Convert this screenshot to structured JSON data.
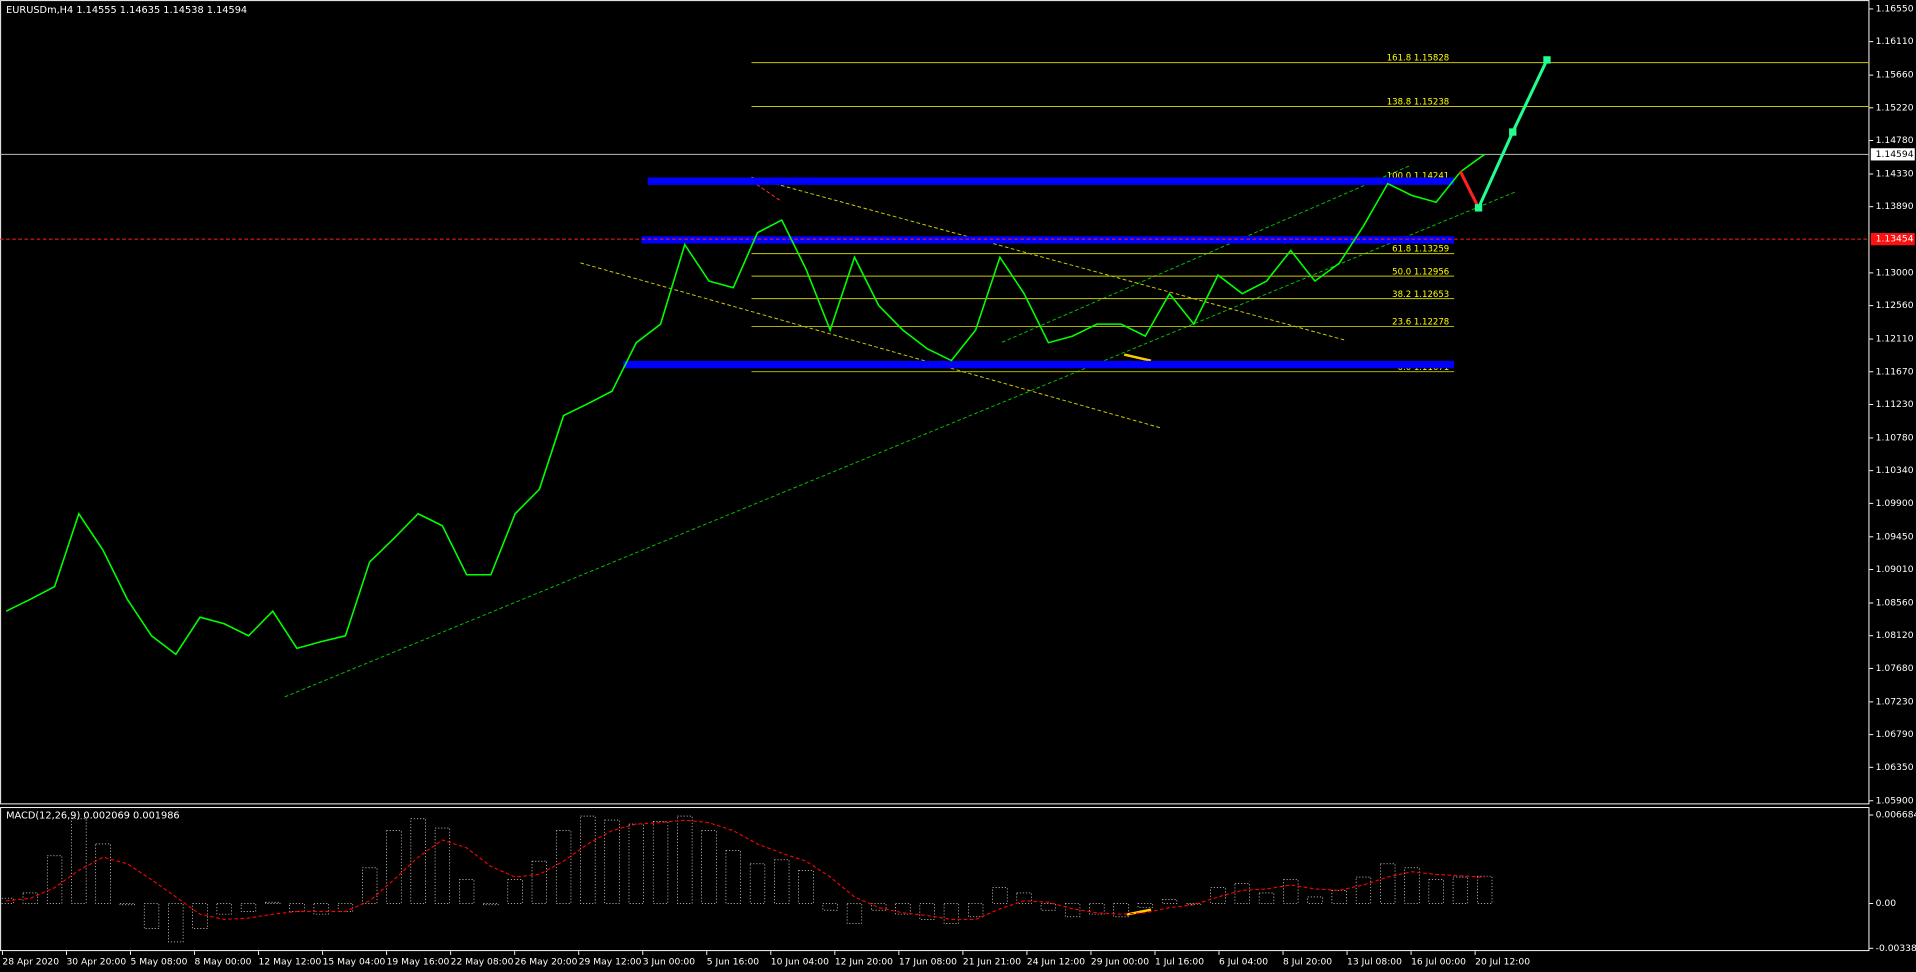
{
  "chart_data": [
    {
      "type": "line",
      "title": "EURUSDm,H4  1.14555 1.14635 1.14538 1.14594",
      "color": "#00ff00",
      "values": [
        1.0845,
        1.0861,
        1.0878,
        1.0976,
        1.0927,
        1.0861,
        1.0812,
        1.0787,
        1.0837,
        1.0828,
        1.0812,
        1.0845,
        1.0795,
        1.0804,
        1.0812,
        1.0911,
        1.0943,
        1.0976,
        1.096,
        1.0894,
        1.0894,
        1.0976,
        1.1009,
        1.1108,
        1.1124,
        1.1141,
        1.1206,
        1.1231,
        1.1338,
        1.1289,
        1.128,
        1.1354,
        1.1371,
        1.1305,
        1.1223,
        1.1321,
        1.1256,
        1.1223,
        1.1198,
        1.1182,
        1.1223,
        1.1321,
        1.1272,
        1.1206,
        1.1215,
        1.1231,
        1.1231,
        1.1215,
        1.1272,
        1.1231,
        1.1297,
        1.1272,
        1.1289,
        1.133,
        1.1289,
        1.1313,
        1.1363,
        1.142,
        1.1404,
        1.1395,
        1.1436,
        1.14594
      ],
      "ylim": [
        1.0585,
        1.1667
      ],
      "yticks": [
        {
          "value": 1.1655,
          "label": "1.16550"
        },
        {
          "value": 1.1611,
          "label": "1.16110"
        },
        {
          "value": 1.1566,
          "label": "1.15660"
        },
        {
          "value": 1.1522,
          "label": "1.15220"
        },
        {
          "value": 1.1478,
          "label": "1.14780"
        },
        {
          "value": 1.1433,
          "label": "1.14330"
        },
        {
          "value": 1.1389,
          "label": "1.13890"
        },
        {
          "value": 1.13,
          "label": "1.13000"
        },
        {
          "value": 1.1256,
          "label": "1.12560"
        },
        {
          "value": 1.1211,
          "label": "1.12110"
        },
        {
          "value": 1.1167,
          "label": "1.11670"
        },
        {
          "value": 1.1123,
          "label": "1.11230"
        },
        {
          "value": 1.1078,
          "label": "1.10780"
        },
        {
          "value": 1.1034,
          "label": "1.10340"
        },
        {
          "value": 1.099,
          "label": "1.09900"
        },
        {
          "value": 1.0945,
          "label": "1.09450"
        },
        {
          "value": 1.0901,
          "label": "1.09010"
        },
        {
          "value": 1.0856,
          "label": "1.08560"
        },
        {
          "value": 1.0812,
          "label": "1.08120"
        },
        {
          "value": 1.0768,
          "label": "1.07680"
        },
        {
          "value": 1.0723,
          "label": "1.07230"
        },
        {
          "value": 1.0679,
          "label": "1.06790"
        },
        {
          "value": 1.0635,
          "label": "1.06350"
        },
        {
          "value": 1.059,
          "label": "1.05900"
        }
      ],
      "current_price": 1.14594,
      "alert_price": 1.13454,
      "fib_levels": [
        {
          "ratio": "161.8",
          "price": 1.15828
        },
        {
          "ratio": "138.8",
          "price": 1.15238
        },
        {
          "ratio": "100.0",
          "price": 1.14241
        },
        {
          "ratio": "61.8",
          "price": 1.13259
        },
        {
          "ratio": "50.0",
          "price": 1.12956
        },
        {
          "ratio": "38.2",
          "price": 1.12653
        },
        {
          "ratio": "23.6",
          "price": 1.12278
        },
        {
          "ratio": "0.0",
          "price": 1.11671
        }
      ],
      "zones": [
        1.14233,
        1.13444,
        1.11767
      ],
      "zone_color": "#0000ff"
    },
    {
      "type": "macd",
      "title": "MACD(12,26,9) 0.002069 0.001986",
      "color": "#ffffff",
      "signal_color": "#ff0000",
      "values": [
        0.0004,
        0.0008,
        0.0036,
        0.0064,
        0.0045,
        -0.0001,
        -0.0019,
        -0.0029,
        -0.0019,
        -0.0008,
        -0.0006,
        0.0001,
        -0.0006,
        -0.0008,
        -0.0006,
        0.0027,
        0.0055,
        0.0064,
        0.0057,
        0.0018,
        -0.0001,
        0.0018,
        0.0032,
        0.0055,
        0.0066,
        0.0063,
        0.006,
        0.0062,
        0.0066,
        0.0055,
        0.004,
        0.003,
        0.0033,
        0.0025,
        -0.0005,
        -0.0015,
        -0.0005,
        -0.0008,
        -0.0012,
        -0.0015,
        -0.001,
        0.0012,
        0.0008,
        -0.0005,
        -0.001,
        -0.0008,
        -0.001,
        -0.0003,
        0.0003,
        0,
        0.0012,
        0.0015,
        0.0008,
        0.0018,
        0.0005,
        0.001,
        0.002,
        0.003,
        0.0027,
        0.0018,
        0.002,
        0.002069
      ],
      "signal": [
        0.0002,
        0.0004,
        0.0012,
        0.0025,
        0.0035,
        0.003,
        0.0018,
        0.0005,
        -0.0008,
        -0.0012,
        -0.0011,
        -0.0008,
        -0.0006,
        -0.0006,
        -0.0006,
        0.0002,
        0.0018,
        0.0035,
        0.0048,
        0.0042,
        0.0028,
        0.002,
        0.0022,
        0.0032,
        0.0045,
        0.0055,
        0.006,
        0.0061,
        0.0063,
        0.0061,
        0.0055,
        0.0045,
        0.0038,
        0.0032,
        0.002,
        0.0005,
        -0.0003,
        -0.0007,
        -0.0009,
        -0.0012,
        -0.0012,
        -0.0004,
        0.0002,
        0.0001,
        -0.0004,
        -0.0007,
        -0.0008,
        -0.0007,
        -0.0003,
        -0.0001,
        0.0005,
        0.001,
        0.0011,
        0.0014,
        0.0011,
        0.001,
        0.0014,
        0.002,
        0.0024,
        0.0022,
        0.0021,
        0.001986
      ],
      "ylim": [
        -0.0036,
        0.0072
      ],
      "yticks": [
        0.006684,
        {
          "value": 0,
          "label": "0.00"
        },
        -0.00338
      ]
    }
  ],
  "time_axis": [
    "28 Apr 2020",
    "30 Apr 20:00",
    "5 May 08:00",
    "8 May 00:00",
    "12 May 12:00",
    "15 May 04:00",
    "19 May 16:00",
    "22 May 08:00",
    "26 May 20:00",
    "29 May 12:00",
    "3 Jun 00:00",
    "5 Jun 16:00",
    "10 Jun 04:00",
    "12 Jun 20:00",
    "17 Jun 08:00",
    "21 Jun 21:00",
    "24 Jun 12:00",
    "29 Jun 00:00",
    "1 Jul 16:00",
    "6 Jul 04:00",
    "8 Jul 20:00",
    "13 Jul 08:00",
    "16 Jul 00:00",
    "20 Jul 12:00"
  ]
}
